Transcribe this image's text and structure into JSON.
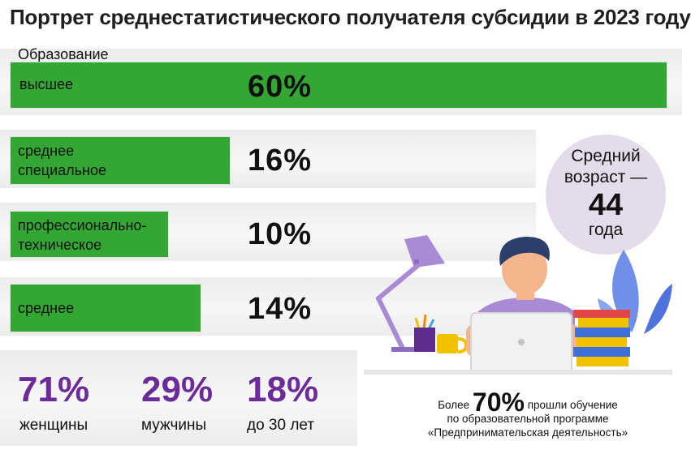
{
  "title": "Портрет среднестатистического получателя субсидии в 2023 году",
  "education": {
    "label": "Образование",
    "items": [
      {
        "name_lines": [
          "высшее"
        ],
        "value": "60%",
        "share": 60
      },
      {
        "name_lines": [
          "среднее",
          "специальное"
        ],
        "value": "16%",
        "share": 16
      },
      {
        "name_lines": [
          "профессионально-",
          "техническое"
        ],
        "value": "10%",
        "share": 10
      },
      {
        "name_lines": [
          "среднее"
        ],
        "value": "14%",
        "share": 14
      }
    ]
  },
  "stats": [
    {
      "value": "71%",
      "label": "женщины"
    },
    {
      "value": "29%",
      "label": "мужчины"
    },
    {
      "value": "18%",
      "label": "до 30 лет"
    }
  ],
  "age": {
    "line1": "Средний",
    "line2": "возраст —",
    "value": "44",
    "unit": "года"
  },
  "training": {
    "prefix": "Более",
    "value": "70%",
    "line1": "прошли обучение",
    "line2": "по образовательной программе",
    "line3": "«Предпринимательская деятельность»"
  },
  "colors": {
    "bar": "#33a634",
    "accent": "#6b2c9a",
    "circle": "#e4dcea"
  }
}
